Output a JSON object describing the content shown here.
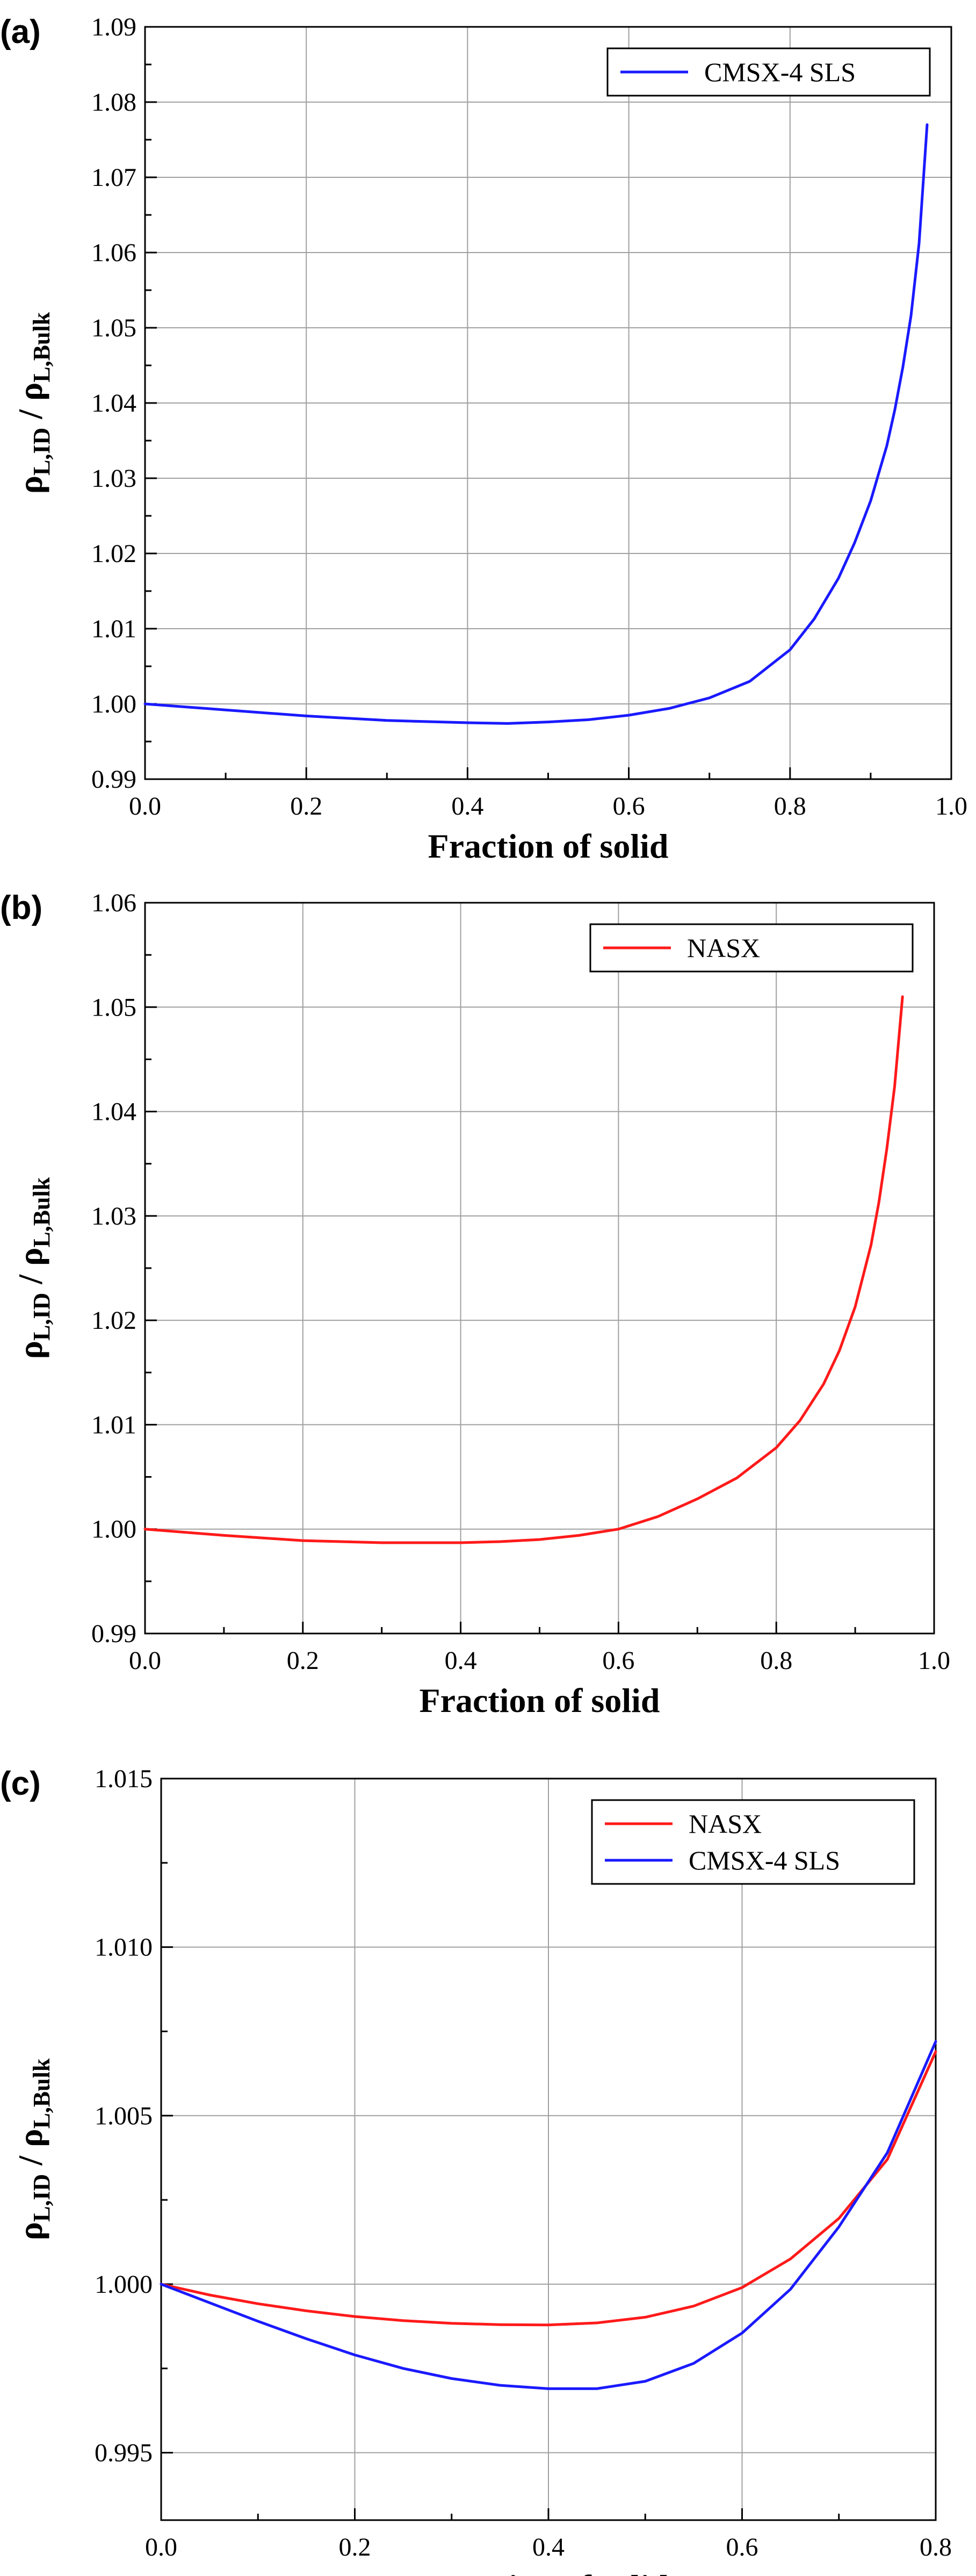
{
  "chart_data": [
    {
      "type": "line",
      "panel_label": "(a)",
      "xlabel": "Fraction of solid",
      "ylabel_main": "ρ",
      "ylabel_sub_1": "L,ID",
      "ylabel_sep": " / ρ",
      "ylabel_sub_2": "L,Bulk",
      "xlim": [
        0.0,
        1.0
      ],
      "ylim": [
        0.99,
        1.09
      ],
      "xticks": [
        0.0,
        0.2,
        0.4,
        0.6,
        0.8,
        1.0
      ],
      "xtick_labels": [
        "0.0",
        "0.2",
        "0.4",
        "0.6",
        "0.8",
        "1.0"
      ],
      "yticks": [
        0.99,
        1.0,
        1.01,
        1.02,
        1.03,
        1.04,
        1.05,
        1.06,
        1.07,
        1.08,
        1.09
      ],
      "ytick_labels": [
        "0.99",
        "1.00",
        "1.01",
        "1.02",
        "1.03",
        "1.04",
        "1.05",
        "1.06",
        "1.07",
        "1.08",
        "1.09"
      ],
      "grid": true,
      "legend_position": "top-right",
      "series": [
        {
          "name": "CMSX-4 SLS",
          "color": "#1a1aff",
          "x": [
            0.0,
            0.1,
            0.2,
            0.3,
            0.4,
            0.45,
            0.5,
            0.55,
            0.6,
            0.65,
            0.7,
            0.75,
            0.8,
            0.83,
            0.86,
            0.88,
            0.9,
            0.92,
            0.93,
            0.94,
            0.95,
            0.96,
            0.97
          ],
          "y": [
            1.0,
            0.9992,
            0.9984,
            0.9978,
            0.9975,
            0.9974,
            0.9976,
            0.9979,
            0.9985,
            0.9994,
            1.0008,
            1.003,
            1.0072,
            1.0113,
            1.0167,
            1.0214,
            1.027,
            1.0343,
            1.0391,
            1.0448,
            1.0516,
            1.0612,
            1.077
          ]
        }
      ]
    },
    {
      "type": "line",
      "panel_label": "(b)",
      "xlabel": "Fraction of solid",
      "ylabel_main": "ρ",
      "ylabel_sub_1": "L,ID",
      "ylabel_sep": " / ρ",
      "ylabel_sub_2": "L,Bulk",
      "xlim": [
        0.0,
        1.0
      ],
      "ylim": [
        0.99,
        1.06
      ],
      "xticks": [
        0.0,
        0.2,
        0.4,
        0.6,
        0.8,
        1.0
      ],
      "xtick_labels": [
        "0.0",
        "0.2",
        "0.4",
        "0.6",
        "0.8",
        "1.0"
      ],
      "yticks": [
        0.99,
        1.0,
        1.01,
        1.02,
        1.03,
        1.04,
        1.05,
        1.06
      ],
      "ytick_labels": [
        "0.99",
        "1.00",
        "1.01",
        "1.02",
        "1.03",
        "1.04",
        "1.05",
        "1.06"
      ],
      "grid": true,
      "legend_position": "top-right",
      "series": [
        {
          "name": "NASX",
          "color": "#ff1a1a",
          "x": [
            0.0,
            0.1,
            0.2,
            0.3,
            0.4,
            0.45,
            0.5,
            0.55,
            0.6,
            0.65,
            0.7,
            0.75,
            0.8,
            0.83,
            0.86,
            0.88,
            0.9,
            0.92,
            0.93,
            0.94,
            0.95,
            0.96
          ],
          "y": [
            1.0,
            0.9994,
            0.9989,
            0.9987,
            0.9987,
            0.9988,
            0.999,
            0.9994,
            1.0,
            1.0012,
            1.0029,
            1.0049,
            1.0078,
            1.0104,
            1.0139,
            1.0171,
            1.0213,
            1.0272,
            1.0313,
            1.0364,
            1.0424,
            1.051
          ]
        }
      ]
    },
    {
      "type": "line",
      "panel_label": "(c)",
      "xlabel": "Fraction of solid",
      "ylabel_main": "ρ",
      "ylabel_sub_1": "L,ID",
      "ylabel_sep": " / ρ",
      "ylabel_sub_2": "L,Bulk",
      "xlim": [
        0.0,
        0.8
      ],
      "ylim": [
        0.993,
        1.015
      ],
      "xticks": [
        0.0,
        0.2,
        0.4,
        0.6,
        0.8
      ],
      "xtick_labels": [
        "0.0",
        "0.2",
        "0.4",
        "0.6",
        "0.8"
      ],
      "yticks": [
        0.995,
        1.0,
        1.005,
        1.01,
        1.015
      ],
      "ytick_labels": [
        "0.995",
        "1.000",
        "1.005",
        "1.010",
        "1.015"
      ],
      "grid": true,
      "legend_position": "top-right",
      "series": [
        {
          "name": "NASX",
          "color": "#ff1a1a",
          "x": [
            0.0,
            0.05,
            0.1,
            0.15,
            0.2,
            0.25,
            0.3,
            0.35,
            0.4,
            0.45,
            0.5,
            0.55,
            0.6,
            0.65,
            0.7,
            0.75,
            0.8
          ],
          "y": [
            1.0,
            0.99968,
            0.99942,
            0.99921,
            0.99904,
            0.99892,
            0.99884,
            0.9988,
            0.99879,
            0.99885,
            0.99902,
            0.99935,
            0.9999,
            1.00075,
            1.00195,
            1.0037,
            1.0069
          ]
        },
        {
          "name": "CMSX-4 SLS",
          "color": "#1a1aff",
          "x": [
            0.0,
            0.05,
            0.1,
            0.15,
            0.2,
            0.25,
            0.3,
            0.35,
            0.4,
            0.45,
            0.5,
            0.55,
            0.6,
            0.65,
            0.7,
            0.75,
            0.8
          ],
          "y": [
            1.0,
            0.99945,
            0.9989,
            0.99838,
            0.9979,
            0.9975,
            0.9972,
            0.997,
            0.9969,
            0.9969,
            0.99712,
            0.99765,
            0.99855,
            0.99985,
            1.0017,
            1.0039,
            1.0072
          ]
        }
      ]
    }
  ]
}
